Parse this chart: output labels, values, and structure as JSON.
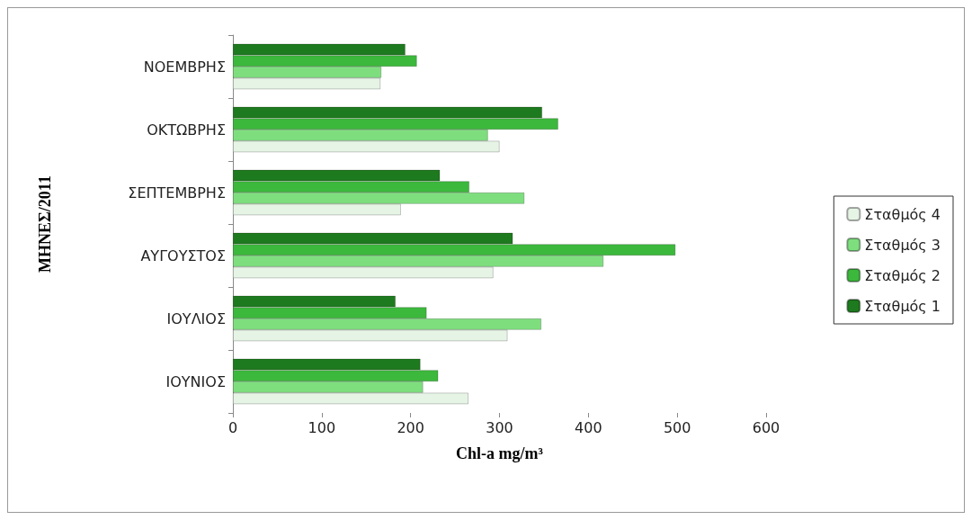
{
  "chart_data": {
    "type": "bar",
    "orientation": "horizontal",
    "xlabel": "Chl-a mg/m³",
    "ylabel": "ΜΗΝΕΣ/2011",
    "categories": [
      "ΝΟΕΜΒΡΗΣ",
      "ΟΚΤΩΒΡΗΣ",
      "ΣΕΠΤΕΜΒΡΗΣ",
      "ΑΥΓΟΥΣΤΟΣ",
      "ΙΟΥΛΙΟΣ",
      "ΙΟΥΝΙΟΣ"
    ],
    "series": [
      {
        "name": "Σταθμός 4",
        "color": "#e6f4e6",
        "values": [
          166,
          300,
          189,
          293,
          309,
          265
        ]
      },
      {
        "name": "Σταθμός 3",
        "color": "#7ede7e",
        "values": [
          167,
          287,
          328,
          417,
          347,
          214
        ]
      },
      {
        "name": "Σταθμός 2",
        "color": "#3cb83c",
        "values": [
          207,
          366,
          266,
          498,
          218,
          231
        ]
      },
      {
        "name": "Σταθμός 1",
        "color": "#1e7a1e",
        "values": [
          194,
          348,
          233,
          315,
          183,
          211
        ]
      }
    ],
    "xlim": [
      0,
      600
    ],
    "xticks": [
      0,
      100,
      200,
      300,
      400,
      500,
      600
    ],
    "grid": false,
    "legend": "right"
  }
}
